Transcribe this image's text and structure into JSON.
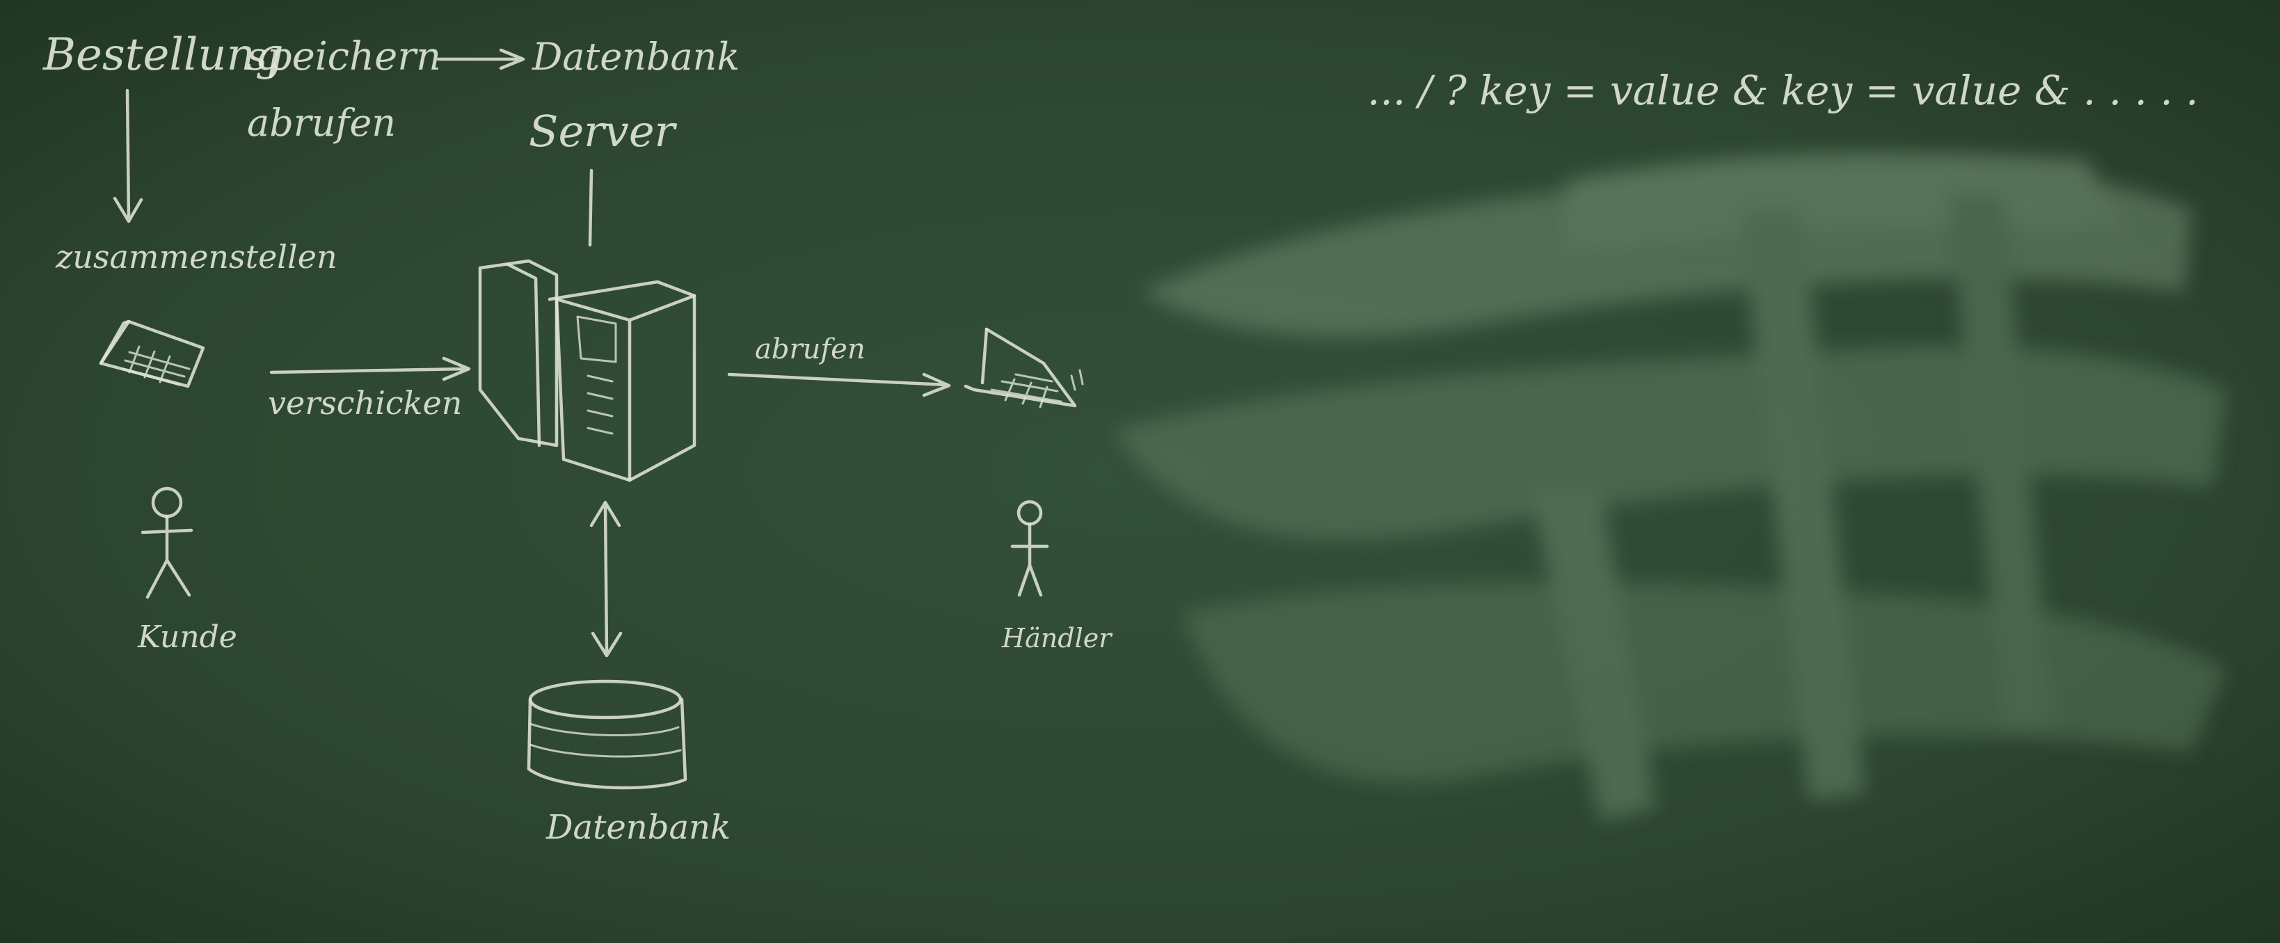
{
  "scene": {
    "description_tag": "chalkboard-sketch",
    "board_color": "#2c442e",
    "chalk_color": "#e3e7dc"
  },
  "labels": {
    "bestellung": "Bestellung",
    "speichern": "speichern",
    "abrufen": "abrufen",
    "datenbank_top": "Datenbank",
    "server": "Server",
    "zusammenstellen": "zusammenstellen",
    "verschicken": "verschicken",
    "abrufen_arrow": "abrufen",
    "kunde": "Kunde",
    "haendler": "Händler",
    "datenbank_bottom": "Datenbank",
    "query_string": "... / ? key = value & key = value & . . . . ."
  }
}
